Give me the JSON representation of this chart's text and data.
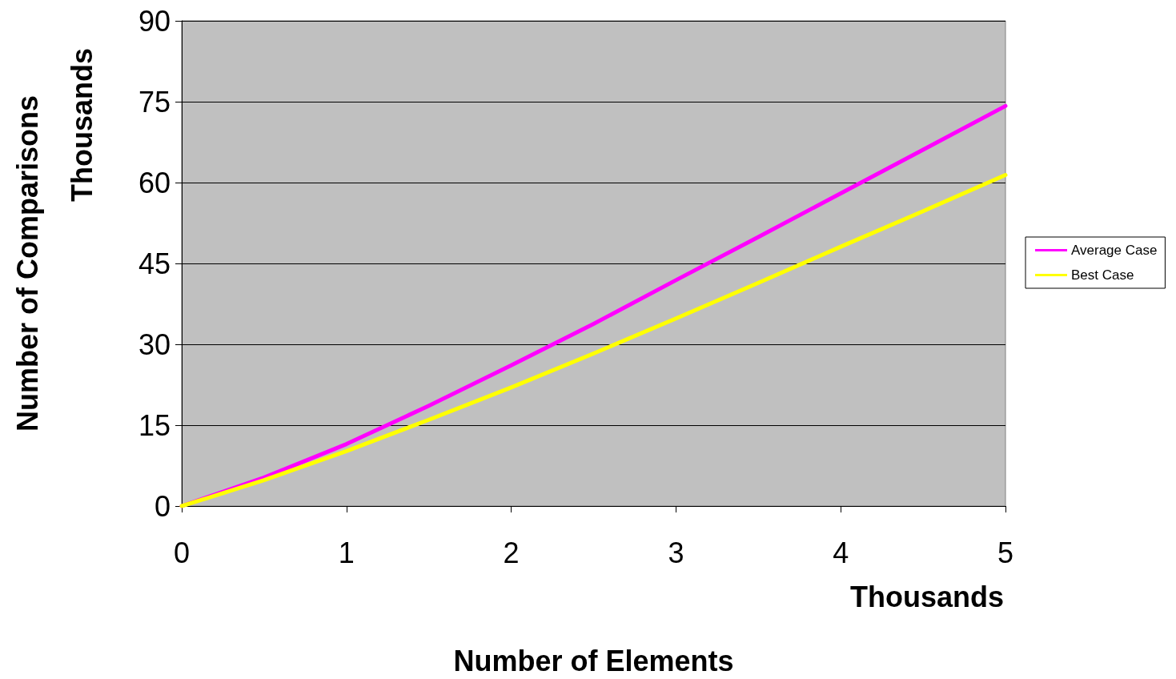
{
  "chart_data": {
    "type": "line",
    "xlabel": "Number of Elements",
    "ylabel": "Number of Comparisons",
    "annotations": [
      "Thousands",
      "Thousands"
    ],
    "x": [
      0,
      0.5,
      1,
      1.5,
      2,
      2.5,
      3,
      3.5,
      4,
      4.5,
      5
    ],
    "series": [
      {
        "name": "Average Case",
        "color": "#ff00ff",
        "values": [
          0,
          5.3,
          11.5,
          18.6,
          26.1,
          33.8,
          41.9,
          49.9,
          58,
          66.1,
          74.2
        ]
      },
      {
        "name": "Best Case",
        "color": "#ffff00",
        "values": [
          0,
          4.8,
          10.2,
          16,
          22,
          28.3,
          34.8,
          41.4,
          48.1,
          54.7,
          61.4
        ]
      }
    ],
    "xlim": [
      0,
      5
    ],
    "xticks": [
      0,
      1,
      2,
      3,
      4,
      5
    ],
    "ylim": [
      0,
      90
    ],
    "yticks": [
      0,
      15,
      30,
      45,
      60,
      75,
      90
    ],
    "grid": "y",
    "legend": "right",
    "marker": "none",
    "line_style": "solid"
  }
}
